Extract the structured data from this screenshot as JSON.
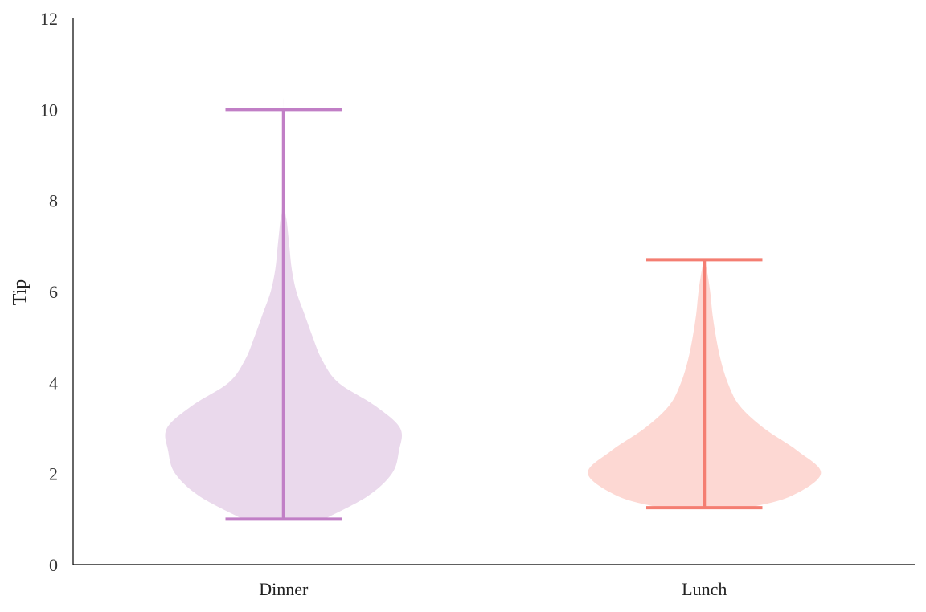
{
  "chart_data": {
    "type": "violin",
    "title": "",
    "xlabel": "",
    "ylabel": "Tip",
    "ylim": [
      0,
      12
    ],
    "yticks": [
      "0",
      "2",
      "4",
      "6",
      "8",
      "10",
      "12"
    ],
    "grid": false,
    "categories": [
      "Dinner",
      "Lunch"
    ],
    "series": [
      {
        "category": "Dinner",
        "min": 1.0,
        "max": 10.0,
        "fill_color": "#ead9ec",
        "line_color": "#c17fc6",
        "density": [
          [
            1.0,
            0.35
          ],
          [
            1.5,
            0.72
          ],
          [
            2.0,
            0.93
          ],
          [
            2.5,
            0.99
          ],
          [
            3.0,
            1.0
          ],
          [
            3.5,
            0.78
          ],
          [
            4.0,
            0.47
          ],
          [
            4.5,
            0.33
          ],
          [
            5.0,
            0.25
          ],
          [
            5.5,
            0.18
          ],
          [
            6.0,
            0.11
          ],
          [
            6.5,
            0.07
          ],
          [
            7.0,
            0.05
          ],
          [
            7.5,
            0.03
          ],
          [
            8.0,
            0.01
          ],
          [
            10.0,
            0.0
          ]
        ]
      },
      {
        "category": "Lunch",
        "min": 1.25,
        "max": 6.7,
        "fill_color": "#fdd8d3",
        "line_color": "#f47e72",
        "density": [
          [
            1.25,
            0.38
          ],
          [
            1.5,
            0.74
          ],
          [
            2.0,
            1.0
          ],
          [
            2.5,
            0.8
          ],
          [
            3.0,
            0.51
          ],
          [
            3.5,
            0.3
          ],
          [
            4.0,
            0.2
          ],
          [
            4.5,
            0.14
          ],
          [
            5.0,
            0.1
          ],
          [
            5.5,
            0.07
          ],
          [
            6.0,
            0.05
          ],
          [
            6.5,
            0.02
          ],
          [
            6.7,
            0.0
          ]
        ]
      }
    ]
  }
}
